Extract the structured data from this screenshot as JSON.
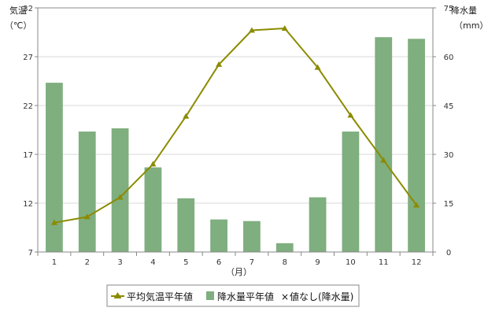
{
  "chart_data": {
    "type": "bar",
    "categories": [
      "1",
      "2",
      "3",
      "4",
      "5",
      "6",
      "7",
      "8",
      "9",
      "10",
      "11",
      "12"
    ],
    "x_unit": "（月）",
    "left_axis": {
      "label": "気温",
      "unit": "（℃）",
      "range": [
        7,
        32
      ],
      "ticks": [
        7,
        12,
        17,
        22,
        27,
        32
      ]
    },
    "right_axis": {
      "label": "降水量",
      "unit": "（mm）",
      "range": [
        0,
        75
      ],
      "ticks": [
        0,
        15,
        30,
        45,
        60,
        75
      ]
    },
    "grid": true,
    "legend_position": "bottom",
    "series": [
      {
        "name": "平均気温平年値",
        "type": "line",
        "axis": "left",
        "color": "#8b8b00",
        "values": [
          10.0,
          10.6,
          12.6,
          16.0,
          20.9,
          26.2,
          29.7,
          29.9,
          25.9,
          21.0,
          16.4,
          11.8
        ]
      },
      {
        "name": "降水量平年値",
        "type": "bar",
        "axis": "right",
        "color": "#7fae7f",
        "values": [
          52,
          37,
          38,
          26,
          16.5,
          10,
          9.5,
          2.7,
          16.8,
          37,
          66,
          65.5
        ]
      }
    ],
    "legend_extra": {
      "symbol": "×",
      "label": "値なし(降水量)"
    }
  }
}
